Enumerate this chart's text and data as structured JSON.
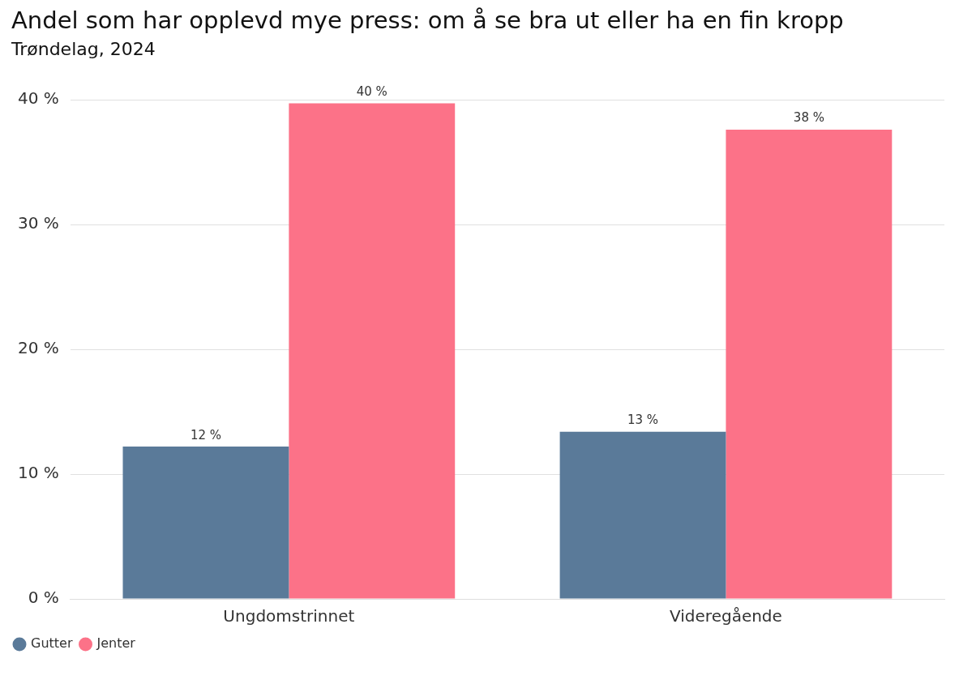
{
  "chart_data": {
    "type": "bar",
    "title": "Andel som har opplevd mye press: om å se bra ut eller ha en fin kropp",
    "subtitle": "Trøndelag, 2024",
    "categories": [
      "Ungdomstrinnet",
      "Videregående"
    ],
    "series": [
      {
        "name": "Gutter",
        "color": "#5a7a99",
        "values": [
          12.2,
          13.4
        ],
        "value_labels": [
          "12 %",
          "13 %"
        ]
      },
      {
        "name": "Jenter",
        "color": "#fc7288",
        "values": [
          39.7,
          37.6
        ],
        "value_labels": [
          "40 %",
          "38 %"
        ]
      }
    ],
    "ylim": [
      0,
      40
    ],
    "yticks": [
      {
        "value": 0,
        "label": "0 %"
      },
      {
        "value": 10,
        "label": "10 %"
      },
      {
        "value": 20,
        "label": "20 %"
      },
      {
        "value": 30,
        "label": "30 %"
      },
      {
        "value": 40,
        "label": "40 %"
      }
    ],
    "grid": "y",
    "legend": "bottom left"
  }
}
